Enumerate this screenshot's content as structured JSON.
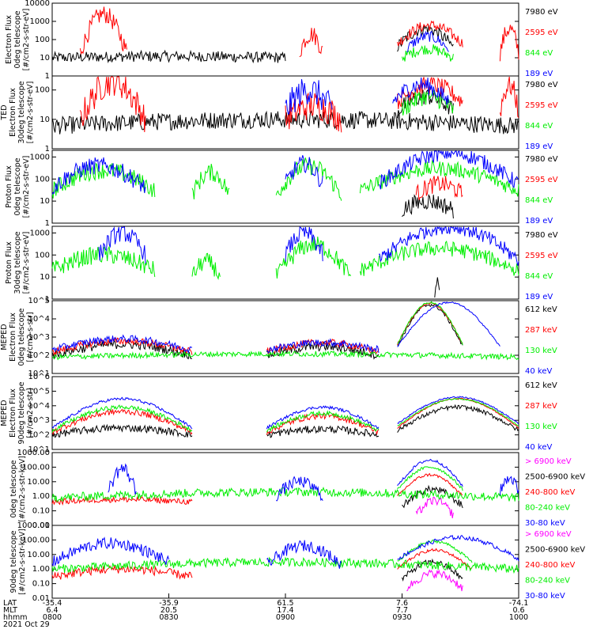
{
  "chart_data": [
    {
      "type": "line",
      "ylabel": [
        "Electron Flux",
        "0deg telescope",
        "[#/cm2-s-str-eV]"
      ],
      "log": true,
      "yticks": [
        "1",
        "10",
        "100",
        "1000",
        "10000"
      ],
      "ylim": [
        1,
        10000
      ],
      "series": [
        {
          "name": "7980 eV",
          "color": "#000000",
          "segments": [
            {
              "x0": 0,
              "x1": 0.5,
              "base": 10,
              "peak": 12,
              "noise": 0.3
            },
            {
              "x0": 0.74,
              "x1": 0.86,
              "base": 40,
              "peak": 400,
              "noise": 0.35
            }
          ]
        },
        {
          "name": "2595 eV",
          "color": "#ff0000",
          "segments": [
            {
              "x0": 0.06,
              "x1": 0.16,
              "base": 20,
              "peak": 2500,
              "noise": 0.5
            },
            {
              "x0": 0.53,
              "x1": 0.58,
              "base": 20,
              "peak": 200,
              "noise": 0.5
            },
            {
              "x0": 0.74,
              "x1": 0.88,
              "base": 60,
              "peak": 600,
              "noise": 0.3
            },
            {
              "x0": 0.96,
              "x1": 1.0,
              "base": 20,
              "peak": 400,
              "noise": 0.5
            }
          ]
        },
        {
          "name": "844 eV",
          "color": "#00ee00",
          "segments": [
            {
              "x0": 0.75,
              "x1": 0.86,
              "base": 10,
              "peak": 30,
              "noise": 0.3
            }
          ]
        },
        {
          "name": "189 eV",
          "color": "#0000ff",
          "segments": [
            {
              "x0": 0.76,
              "x1": 0.85,
              "base": 30,
              "peak": 150,
              "noise": 0.3
            }
          ]
        }
      ]
    },
    {
      "type": "line",
      "ylabel": [
        "TED",
        "Electron Flux",
        "30deg telescope",
        "[#/cm2-s-str-eV]"
      ],
      "log": true,
      "yticks": [
        "1",
        "10",
        "100"
      ],
      "ylim": [
        1,
        300
      ],
      "series": [
        {
          "name": "7980 eV",
          "color": "#000000",
          "segments": [
            {
              "x0": 0,
              "x1": 1.0,
              "base": 6,
              "peak": 10,
              "noise": 0.3
            },
            {
              "x0": 0.74,
              "x1": 0.86,
              "base": 20,
              "peak": 60,
              "noise": 0.3
            }
          ]
        },
        {
          "name": "2595 eV",
          "color": "#ff0000",
          "segments": [
            {
              "x0": 0.06,
              "x1": 0.2,
              "base": 10,
              "peak": 200,
              "noise": 0.5
            },
            {
              "x0": 0.5,
              "x1": 0.62,
              "base": 10,
              "peak": 30,
              "noise": 0.5
            },
            {
              "x0": 0.74,
              "x1": 0.88,
              "base": 40,
              "peak": 150,
              "noise": 0.3
            },
            {
              "x0": 0.96,
              "x1": 1.0,
              "base": 20,
              "peak": 150,
              "noise": 0.4
            }
          ]
        },
        {
          "name": "844 eV",
          "color": "#00ee00",
          "segments": [
            {
              "x0": 0.75,
              "x1": 0.86,
              "base": 20,
              "peak": 60,
              "noise": 0.3
            }
          ]
        },
        {
          "name": "189 eV",
          "color": "#0000ff",
          "segments": [
            {
              "x0": 0.5,
              "x1": 0.6,
              "base": 20,
              "peak": 100,
              "noise": 0.5
            },
            {
              "x0": 0.73,
              "x1": 0.85,
              "base": 40,
              "peak": 150,
              "noise": 0.3
            }
          ]
        }
      ]
    },
    {
      "type": "line",
      "ylabel": [
        "Proton Flux",
        "0deg telescope",
        "[#/cm2-s-str-eV]"
      ],
      "log": true,
      "yticks": [
        "1",
        "10",
        "100",
        "1000"
      ],
      "ylim": [
        1,
        2000
      ],
      "series": [
        {
          "name": "7980 eV",
          "color": "#000000",
          "segments": [
            {
              "x0": 0.75,
              "x1": 0.86,
              "base": 4,
              "peak": 10,
              "noise": 0.4
            }
          ]
        },
        {
          "name": "2595 eV",
          "color": "#ff0000",
          "segments": [
            {
              "x0": 0.78,
              "x1": 0.88,
              "base": 20,
              "peak": 60,
              "noise": 0.4
            }
          ]
        },
        {
          "name": "844 eV",
          "color": "#00ee00",
          "segments": [
            {
              "x0": 0.0,
              "x1": 0.22,
              "base": 30,
              "peak": 250,
              "noise": 0.4
            },
            {
              "x0": 0.3,
              "x1": 0.38,
              "base": 20,
              "peak": 200,
              "noise": 0.4
            },
            {
              "x0": 0.48,
              "x1": 0.62,
              "base": 20,
              "peak": 400,
              "noise": 0.4
            },
            {
              "x0": 0.66,
              "x1": 1.0,
              "base": 30,
              "peak": 300,
              "noise": 0.35
            }
          ]
        },
        {
          "name": "189 eV",
          "color": "#0000ff",
          "segments": [
            {
              "x0": 0.0,
              "x1": 0.2,
              "base": 40,
              "peak": 400,
              "noise": 0.4
            },
            {
              "x0": 0.5,
              "x1": 0.58,
              "base": 60,
              "peak": 500,
              "noise": 0.4
            },
            {
              "x0": 0.7,
              "x1": 1.0,
              "base": 60,
              "peak": 1500,
              "noise": 0.35
            }
          ]
        }
      ]
    },
    {
      "type": "line",
      "ylabel": [
        "Proton Flux",
        "30deg telescope",
        "[#/cm2-s-str-eV]"
      ],
      "log": true,
      "yticks": [
        "1",
        "10",
        "100",
        "1000"
      ],
      "ylim": [
        1,
        2000
      ],
      "series": [
        {
          "name": "7980 eV",
          "color": "#000000",
          "segments": [
            {
              "x0": 0.82,
              "x1": 0.83,
              "base": 2,
              "peak": 6,
              "noise": 0.3
            }
          ]
        },
        {
          "name": "2595 eV",
          "color": "#ff0000",
          "segments": []
        },
        {
          "name": "844 eV",
          "color": "#00ee00",
          "segments": [
            {
              "x0": 0.0,
              "x1": 0.22,
              "base": 20,
              "peak": 100,
              "noise": 0.4
            },
            {
              "x0": 0.3,
              "x1": 0.36,
              "base": 10,
              "peak": 50,
              "noise": 0.4
            },
            {
              "x0": 0.48,
              "x1": 0.64,
              "base": 10,
              "peak": 300,
              "noise": 0.4
            },
            {
              "x0": 0.66,
              "x1": 1.0,
              "base": 20,
              "peak": 200,
              "noise": 0.35
            }
          ]
        },
        {
          "name": "189 eV",
          "color": "#0000ff",
          "segments": [
            {
              "x0": 0.1,
              "x1": 0.2,
              "base": 100,
              "peak": 1000,
              "noise": 0.4
            },
            {
              "x0": 0.5,
              "x1": 0.58,
              "base": 100,
              "peak": 1000,
              "noise": 0.4
            },
            {
              "x0": 0.7,
              "x1": 1.0,
              "base": 60,
              "peak": 2000,
              "noise": 0.35
            }
          ]
        }
      ]
    },
    {
      "type": "line",
      "ylabel": [
        "MEPED",
        "Electron Flux",
        "0deg telescope",
        "[#/cm2-s-str]"
      ],
      "log": true,
      "yticks": [
        "10^1",
        "10^2",
        "10^3",
        "10^4",
        "10^5"
      ],
      "ylim": [
        10,
        100000
      ],
      "series": [
        {
          "name": "612 keV",
          "color": "#000000",
          "segments": [
            {
              "x0": 0.0,
              "x1": 0.3,
              "base": 100,
              "peak": 400,
              "noise": 0.25
            },
            {
              "x0": 0.46,
              "x1": 0.7,
              "base": 100,
              "peak": 300,
              "noise": 0.25
            },
            {
              "x0": 0.74,
              "x1": 0.88,
              "base": 300,
              "peak": 60000,
              "noise": 0.1
            }
          ]
        },
        {
          "name": "287 keV",
          "color": "#ff0000",
          "segments": [
            {
              "x0": 0.0,
              "x1": 0.3,
              "base": 150,
              "peak": 600,
              "noise": 0.2
            },
            {
              "x0": 0.46,
              "x1": 0.7,
              "base": 150,
              "peak": 500,
              "noise": 0.2
            },
            {
              "x0": 0.74,
              "x1": 0.88,
              "base": 400,
              "peak": 70000,
              "noise": 0.05
            }
          ]
        },
        {
          "name": "130 keV",
          "color": "#00ee00",
          "segments": [
            {
              "x0": 0.0,
              "x1": 1.0,
              "base": 80,
              "peak": 120,
              "noise": 0.15
            },
            {
              "x0": 0.74,
              "x1": 0.88,
              "base": 400,
              "peak": 80000,
              "noise": 0.05
            }
          ]
        },
        {
          "name": "40 keV",
          "color": "#0000ff",
          "segments": [
            {
              "x0": 0.0,
              "x1": 0.3,
              "base": 200,
              "peak": 800,
              "noise": 0.2
            },
            {
              "x0": 0.46,
              "x1": 0.7,
              "base": 200,
              "peak": 500,
              "noise": 0.2
            },
            {
              "x0": 0.74,
              "x1": 0.96,
              "base": 300,
              "peak": 80000,
              "noise": 0.05
            }
          ]
        }
      ]
    },
    {
      "type": "line",
      "ylabel": [
        "MEPED",
        "Electron Flux",
        "90deg telescope",
        "[#/cm2-s-str]"
      ],
      "log": true,
      "yticks": [
        "10^1",
        "10^2",
        "10^3",
        "10^4",
        "10^5",
        "10^6"
      ],
      "ylim": [
        10,
        1000000
      ],
      "series": [
        {
          "name": "612 keV",
          "color": "#000000",
          "segments": [
            {
              "x0": 0.0,
              "x1": 0.3,
              "base": 100,
              "peak": 300,
              "noise": 0.25
            },
            {
              "x0": 0.46,
              "x1": 0.7,
              "base": 100,
              "peak": 250,
              "noise": 0.25
            },
            {
              "x0": 0.74,
              "x1": 1.0,
              "base": 200,
              "peak": 8000,
              "noise": 0.15
            }
          ]
        },
        {
          "name": "287 keV",
          "color": "#ff0000",
          "segments": [
            {
              "x0": 0.0,
              "x1": 0.3,
              "base": 150,
              "peak": 4000,
              "noise": 0.2
            },
            {
              "x0": 0.46,
              "x1": 0.7,
              "base": 150,
              "peak": 2000,
              "noise": 0.2
            },
            {
              "x0": 0.74,
              "x1": 1.0,
              "base": 300,
              "peak": 30000,
              "noise": 0.05
            }
          ]
        },
        {
          "name": "130 keV",
          "color": "#00ee00",
          "segments": [
            {
              "x0": 0.0,
              "x1": 0.3,
              "base": 200,
              "peak": 8000,
              "noise": 0.15
            },
            {
              "x0": 0.46,
              "x1": 0.7,
              "base": 200,
              "peak": 3000,
              "noise": 0.15
            },
            {
              "x0": 0.74,
              "x1": 1.0,
              "base": 400,
              "peak": 30000,
              "noise": 0.05
            }
          ]
        },
        {
          "name": "40 keV",
          "color": "#0000ff",
          "segments": [
            {
              "x0": 0.0,
              "x1": 0.3,
              "base": 300,
              "peak": 30000,
              "noise": 0.1
            },
            {
              "x0": 0.46,
              "x1": 0.7,
              "base": 300,
              "peak": 8000,
              "noise": 0.1
            },
            {
              "x0": 0.74,
              "x1": 1.0,
              "base": 600,
              "peak": 40000,
              "noise": 0.05
            }
          ]
        }
      ]
    },
    {
      "type": "line",
      "ylabel": [
        "0deg telescope",
        "[#/cm2-s-str-keV]"
      ],
      "log": true,
      "yticks": [
        "0.01",
        "0.10",
        "1.00",
        "10.00",
        "100.00",
        "1000.00"
      ],
      "ylim": [
        0.01,
        1000
      ],
      "series": [
        {
          "name": "> 6900 keV",
          "color": "#ff00ff",
          "segments": [
            {
              "x0": 0.78,
              "x1": 0.86,
              "base": 0.05,
              "peak": 0.5,
              "noise": 0.3
            }
          ]
        },
        {
          "name": "2500-6900 keV",
          "color": "#000000",
          "segments": [
            {
              "x0": 0.75,
              "x1": 0.88,
              "base": 0.2,
              "peak": 3,
              "noise": 0.25
            }
          ]
        },
        {
          "name": "240-800 keV",
          "color": "#ff0000",
          "segments": [
            {
              "x0": 0.0,
              "x1": 0.3,
              "base": 0.4,
              "peak": 0.6,
              "noise": 0.2
            },
            {
              "x0": 0.74,
              "x1": 0.88,
              "base": 1,
              "peak": 30,
              "noise": 0.1
            }
          ]
        },
        {
          "name": "80-240 keV",
          "color": "#00ee00",
          "segments": [
            {
              "x0": 0.0,
              "x1": 1.0,
              "base": 0.8,
              "peak": 2,
              "noise": 0.3
            },
            {
              "x0": 0.74,
              "x1": 0.88,
              "base": 3,
              "peak": 100,
              "noise": 0.1
            }
          ]
        },
        {
          "name": "30-80 keV",
          "color": "#0000ff",
          "segments": [
            {
              "x0": 0.12,
              "x1": 0.18,
              "base": 2,
              "peak": 80,
              "noise": 0.5
            },
            {
              "x0": 0.48,
              "x1": 0.58,
              "base": 1,
              "peak": 10,
              "noise": 0.4
            },
            {
              "x0": 0.74,
              "x1": 0.88,
              "base": 5,
              "peak": 300,
              "noise": 0.1
            },
            {
              "x0": 0.96,
              "x1": 1.0,
              "base": 2,
              "peak": 20,
              "noise": 0.4
            }
          ]
        }
      ]
    },
    {
      "type": "line",
      "ylabel": [
        "90deg telescope",
        "[#/cm2-s-str-keV]"
      ],
      "log": true,
      "yticks": [
        "0.01",
        "0.10",
        "1.00",
        "10.00",
        "100.00",
        "1000.00"
      ],
      "ylim": [
        0.01,
        1000
      ],
      "series": [
        {
          "name": "> 6900 keV",
          "color": "#ff00ff",
          "segments": [
            {
              "x0": 0.76,
              "x1": 0.88,
              "base": 0.05,
              "peak": 0.5,
              "noise": 0.3
            }
          ]
        },
        {
          "name": "2500-6900 keV",
          "color": "#000000",
          "segments": [
            {
              "x0": 0.75,
              "x1": 0.88,
              "base": 0.2,
              "peak": 3,
              "noise": 0.2
            }
          ]
        },
        {
          "name": "240-800 keV",
          "color": "#ff0000",
          "segments": [
            {
              "x0": 0.0,
              "x1": 0.3,
              "base": 0.3,
              "peak": 1,
              "noise": 0.3
            },
            {
              "x0": 0.74,
              "x1": 0.9,
              "base": 1,
              "peak": 20,
              "noise": 0.1
            }
          ]
        },
        {
          "name": "80-240 keV",
          "color": "#00ee00",
          "segments": [
            {
              "x0": 0.0,
              "x1": 1.0,
              "base": 1,
              "peak": 3,
              "noise": 0.3
            },
            {
              "x0": 0.74,
              "x1": 0.9,
              "base": 3,
              "peak": 80,
              "noise": 0.1
            }
          ]
        },
        {
          "name": "30-80 keV",
          "color": "#0000ff",
          "segments": [
            {
              "x0": 0.0,
              "x1": 0.25,
              "base": 3,
              "peak": 60,
              "noise": 0.4
            },
            {
              "x0": 0.46,
              "x1": 0.62,
              "base": 2,
              "peak": 40,
              "noise": 0.4
            },
            {
              "x0": 0.74,
              "x1": 1.0,
              "base": 5,
              "peak": 150,
              "noise": 0.15
            }
          ]
        }
      ]
    }
  ],
  "xaxis": {
    "row_labels": [
      "LAT",
      "MLT",
      "hhmm"
    ],
    "date": "2021 Oct 29",
    "ticks": [
      {
        "lat": "-35.4",
        "mlt": "6.4",
        "hhmm": "0800"
      },
      {
        "lat": "-35.9",
        "mlt": "20.5",
        "hhmm": "0830"
      },
      {
        "lat": "61.5",
        "mlt": "17.4",
        "hhmm": "0900"
      },
      {
        "lat": "7.6",
        "mlt": "7.7",
        "hhmm": "0930"
      },
      {
        "lat": "-74.1",
        "mlt": "0.6",
        "hhmm": "1000"
      }
    ]
  }
}
